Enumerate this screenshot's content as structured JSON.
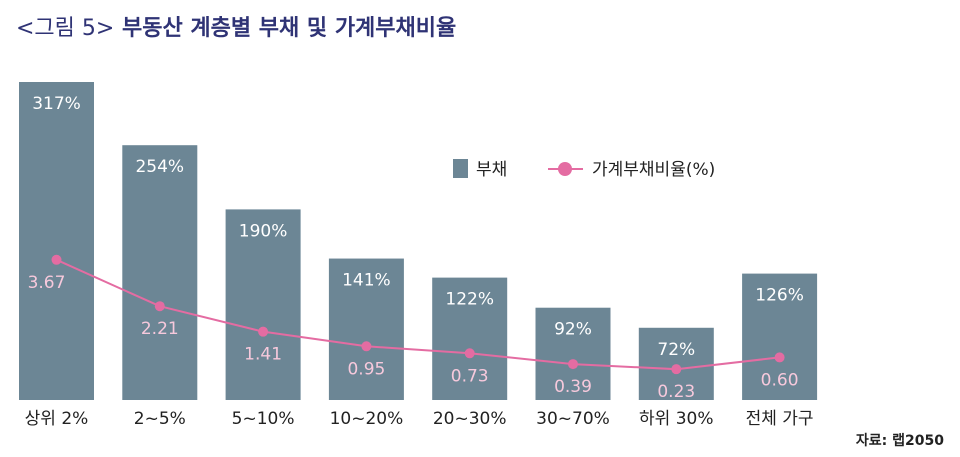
{
  "title": {
    "prefix": "<그림 5>",
    "text": "부동산 계층별 부채 및 가계부채비율"
  },
  "source": "자료: 랩2050",
  "colors": {
    "bar": "#6c8695",
    "line": "#e46ca2",
    "bar_label": "#ffffff",
    "line_label": "#f7c9dc"
  },
  "chart_data": {
    "type": "bar",
    "categories": [
      "상위 2%",
      "2~5%",
      "5~10%",
      "10~20%",
      "20~30%",
      "30~70%",
      "하위 30%",
      "전체 가구"
    ],
    "series": [
      {
        "name": "부채",
        "type": "bar",
        "values": [
          317,
          254,
          190,
          141,
          122,
          92,
          72,
          126
        ],
        "labels": [
          "317%",
          "254%",
          "190%",
          "141%",
          "122%",
          "92%",
          "72%",
          "126%"
        ]
      },
      {
        "name": "가계부채비율(%)",
        "type": "line",
        "values": [
          3.67,
          2.21,
          1.41,
          0.95,
          0.73,
          0.39,
          0.23,
          0.6
        ],
        "labels": [
          "3.67",
          "2.21",
          "1.41",
          "0.95",
          "0.73",
          "0.39",
          "0.23",
          "0.60"
        ]
      }
    ],
    "legend_position": "top-right",
    "grid": false
  }
}
